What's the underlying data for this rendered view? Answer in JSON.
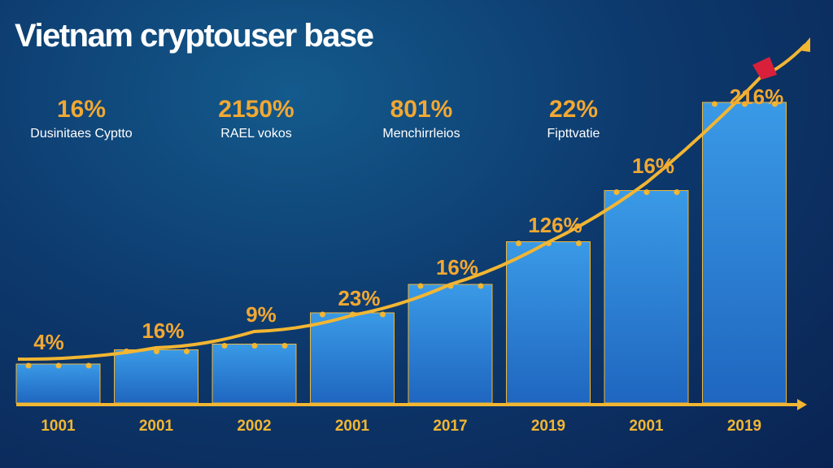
{
  "title": "Vietnam cryptouser base",
  "stats": [
    {
      "value": "16%",
      "label": "Dusinitaes Cyptto"
    },
    {
      "value": "2150%",
      "label": "RAEL vokos"
    },
    {
      "value": "801%",
      "label": "Menchirrleios"
    },
    {
      "value": "22%",
      "label": "Fipttvatie"
    }
  ],
  "chart_data": {
    "type": "bar",
    "title": "Vietnam cryptouser base",
    "categories": [
      "1001",
      "2001",
      "2002",
      "2001",
      "2017",
      "2019",
      "2001",
      "2019"
    ],
    "values": [
      8,
      13,
      15,
      26,
      36,
      51,
      69,
      100
    ],
    "line_labels": [
      "4%",
      "16%",
      "9%",
      "23%",
      "16%",
      "126%",
      "16%",
      "216%"
    ],
    "ylim": [
      0,
      100
    ],
    "colors": {
      "bar": "#2f8ad8",
      "line": "#f2b632",
      "label": "#f2a832"
    }
  }
}
